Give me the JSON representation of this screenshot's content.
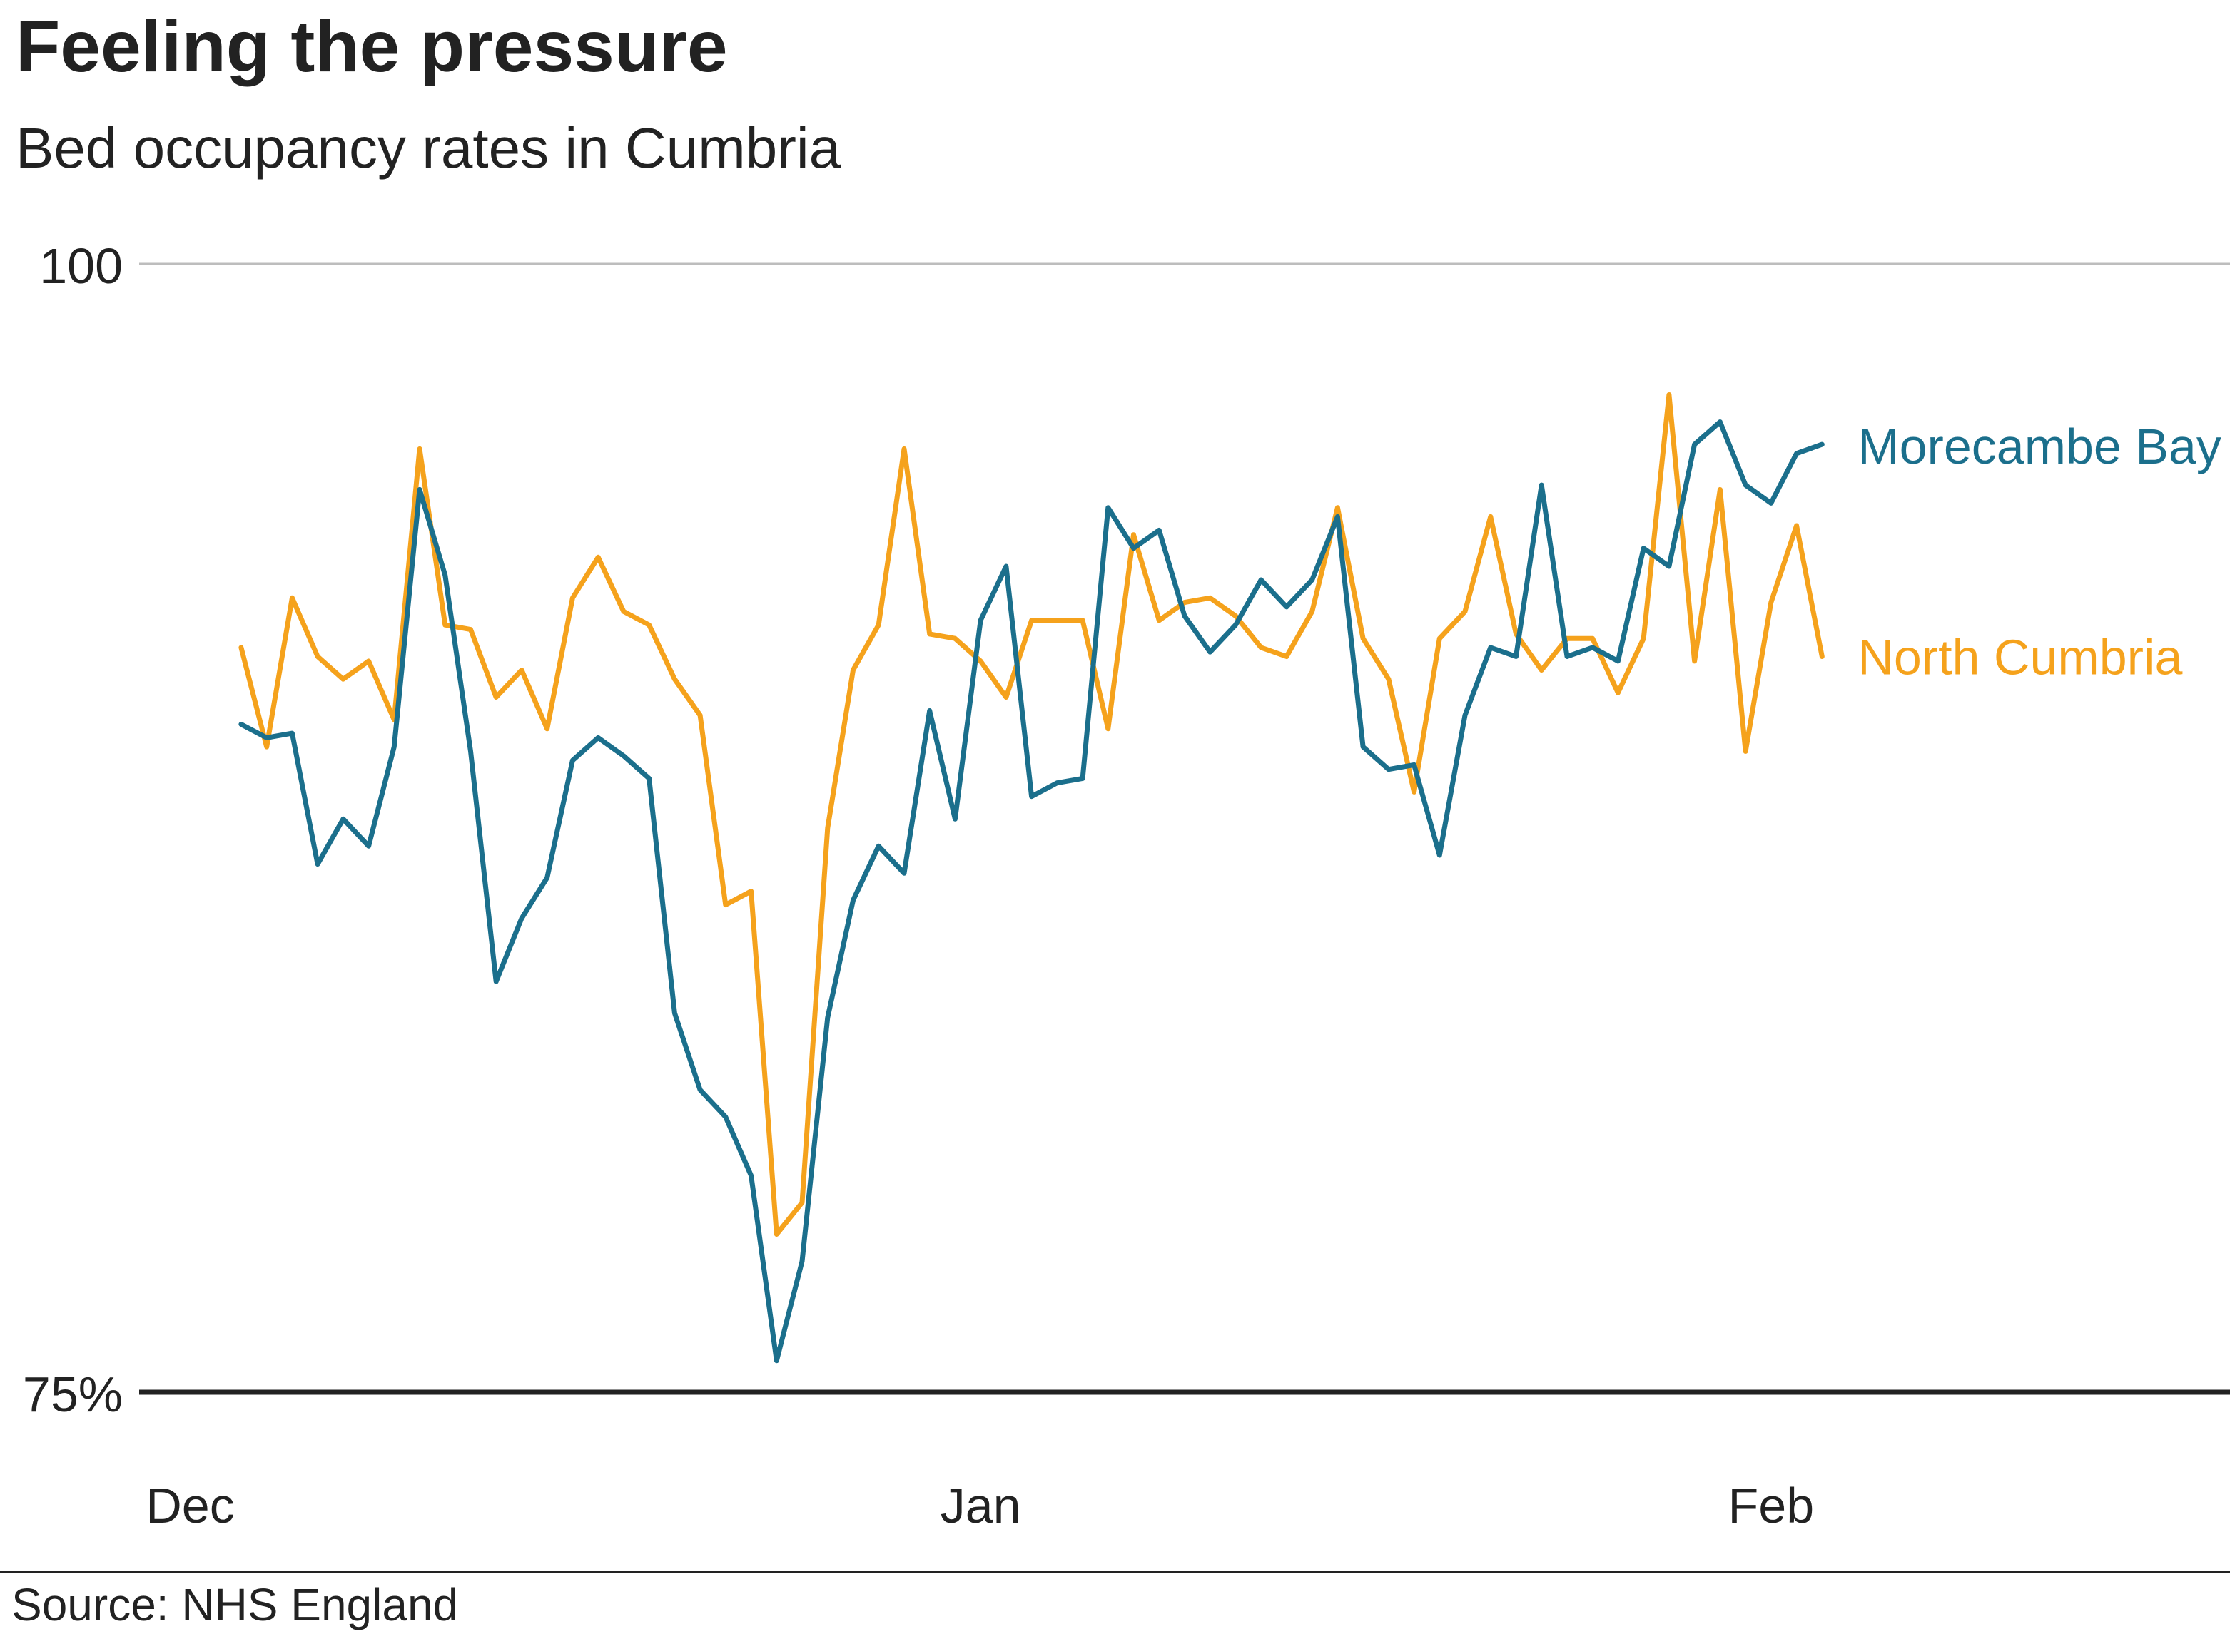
{
  "title": "Feeling the pressure",
  "subtitle": "Bed occupancy rates in Cumbria",
  "source": "Source: NHS England",
  "chart_data": {
    "type": "line",
    "title": "Feeling the pressure",
    "subtitle": "Bed occupancy rates in Cumbria",
    "ylim": [
      75,
      100
    ],
    "y_ticks": [
      {
        "value": 100,
        "label": "100"
      },
      {
        "value": 75,
        "label": "75%"
      }
    ],
    "x_ticks": [
      {
        "day": 1,
        "label": "Dec"
      },
      {
        "day": 32,
        "label": "Jan"
      },
      {
        "day": 63,
        "label": "Feb"
      }
    ],
    "x_range": [
      -1,
      81
    ],
    "grid": "horizontal",
    "legend": "direct labels at line ends, right",
    "series": [
      {
        "name": "Morecambe Bay",
        "color": "#1b6f8c",
        "start_day": 3,
        "values": [
          89.8,
          89.5,
          89.6,
          86.7,
          87.7,
          87.1,
          89.3,
          95.0,
          93.1,
          89.2,
          84.1,
          85.5,
          86.4,
          89.0,
          89.5,
          89.1,
          88.6,
          83.4,
          81.7,
          81.1,
          79.8,
          75.7,
          77.9,
          83.3,
          85.9,
          87.1,
          86.5,
          90.1,
          87.7,
          92.1,
          93.3,
          88.2,
          88.5,
          88.6,
          94.6,
          93.7,
          94.1,
          92.2,
          91.4,
          92.0,
          93.0,
          92.4,
          93.0,
          94.4,
          89.3,
          88.8,
          88.9,
          86.9,
          90.0,
          91.5,
          91.3,
          95.1,
          91.3,
          91.5,
          91.2,
          93.7,
          93.3,
          96.0,
          96.5,
          95.1,
          94.7,
          95.8,
          96.0
        ]
      },
      {
        "name": "North Cumbria",
        "color": "#f5a21c",
        "start_day": 3,
        "values": [
          91.5,
          89.3,
          92.6,
          91.3,
          90.8,
          91.2,
          89.9,
          95.9,
          92.0,
          91.9,
          90.4,
          91.0,
          89.7,
          92.6,
          93.5,
          92.3,
          92.0,
          90.8,
          90.0,
          85.8,
          86.1,
          78.5,
          79.2,
          87.5,
          91.0,
          92.0,
          95.9,
          91.8,
          91.7,
          91.2,
          90.4,
          92.1,
          92.1,
          92.1,
          89.7,
          94.0,
          92.1,
          92.5,
          92.6,
          92.2,
          91.5,
          91.3,
          92.3,
          94.6,
          91.7,
          90.8,
          88.3,
          91.7,
          92.3,
          94.4,
          91.8,
          91.0,
          91.7,
          91.7,
          90.5,
          91.7,
          97.1,
          91.2,
          95.0,
          89.2,
          92.5,
          94.2,
          91.3
        ]
      }
    ],
    "style": {
      "background": "#ffffff",
      "text_color": "#222222",
      "grid_color": "#bdbdbd",
      "baseline_color": "#222222"
    }
  }
}
